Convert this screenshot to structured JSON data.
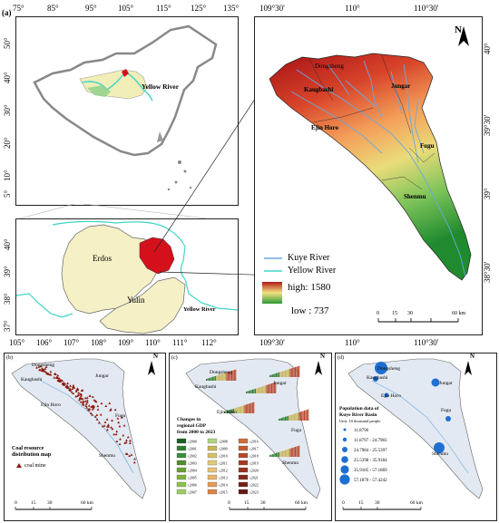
{
  "panel_labels": {
    "a": "(a)",
    "b": "(b)",
    "c": "(c)",
    "d": "(d)"
  },
  "top_lon_ticks": [
    "75°",
    "85°",
    "95°",
    "105°",
    "115°",
    "125°",
    "135°"
  ],
  "china_lat_ticks": [
    "50°",
    "40°",
    "30°",
    "20°",
    "10°",
    "5°"
  ],
  "china_label": "Yellow River",
  "mid_lat_ticks": [
    "40°",
    "39°",
    "38°",
    "37°"
  ],
  "mid_lon_ticks": [
    "105°",
    "106°",
    "107°",
    "108°",
    "109°",
    "110°",
    "111°",
    "112°"
  ],
  "mid_labels": {
    "erdos": "Erdos",
    "yulin": "Yulin",
    "yellow_river": "Yellow River"
  },
  "right_lon_ticks": [
    "109°30'",
    "110°",
    "110°30'"
  ],
  "right_lat_ticks": [
    "40°",
    "39°30'",
    "39°",
    "38°30'"
  ],
  "towns": [
    "Dongsheng",
    "Kaugbashi",
    "Jungar",
    "Ejin Horo",
    "Fugu",
    "Shenmu"
  ],
  "legend": {
    "kuye_river": "Kuye River",
    "yellow_river": "Yellow River",
    "high": "high: 1580",
    "low": "low : 737",
    "colors": {
      "kuye": "#6aa8e0",
      "yellow": "#3fd6c8",
      "high": "#b21818",
      "low": "#2c9a36"
    }
  },
  "scale_main": [
    "0",
    "15",
    "30",
    "60 km"
  ],
  "scale_small": [
    "0",
    "15",
    "30",
    "60 km"
  ],
  "north": "N",
  "panel_b": {
    "title_line1": "Coal resource",
    "title_line2": "distribution map",
    "legend_item": "coal mine"
  },
  "panel_c": {
    "title_lines": [
      "Changes in",
      "regional GDP",
      "from 2000 to 2023"
    ],
    "years": [
      "c2000",
      "c2001",
      "c2002",
      "c2003",
      "c2004",
      "c2005",
      "c2006",
      "c2007",
      "c2008",
      "c2009",
      "c2010",
      "c2011",
      "c2012",
      "c2013",
      "c2014",
      "c2015",
      "c2016",
      "c2017",
      "c2018",
      "c2019",
      "c2020",
      "c2021",
      "c2022",
      "c2023"
    ]
  },
  "panel_d": {
    "title_lines": [
      "Population data of",
      "Kuye River Basin"
    ],
    "unit": "Unit: 10 thousand people",
    "classes": [
      "11.8796",
      "11.8797 - 24.7983",
      "24.7984 - 25.5397",
      "25.5398 - 35.9184",
      "35.9185 - 57.1869",
      "57.1870 - 57.4242"
    ]
  }
}
